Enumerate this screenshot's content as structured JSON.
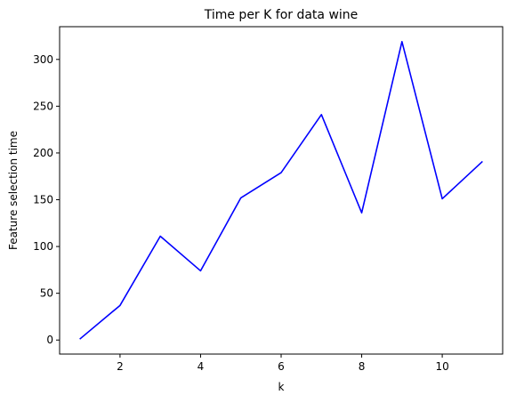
{
  "chart_data": {
    "type": "line",
    "title": "Time per K for data wine",
    "xlabel": "k",
    "ylabel": "Feature selection time",
    "x": [
      1,
      2,
      3,
      4,
      5,
      6,
      7,
      8,
      9,
      10,
      11
    ],
    "series": [
      {
        "values": [
          1,
          37,
          111,
          74,
          152,
          179,
          241,
          136,
          319,
          151,
          191
        ],
        "color": "#0000ff"
      }
    ],
    "xticks": [
      2,
      4,
      6,
      8,
      10
    ],
    "yticks": [
      0,
      50,
      100,
      150,
      200,
      250,
      300
    ],
    "xlim": [
      0.5,
      11.5
    ],
    "ylim": [
      -15,
      335
    ],
    "grid": false,
    "legend": false
  }
}
